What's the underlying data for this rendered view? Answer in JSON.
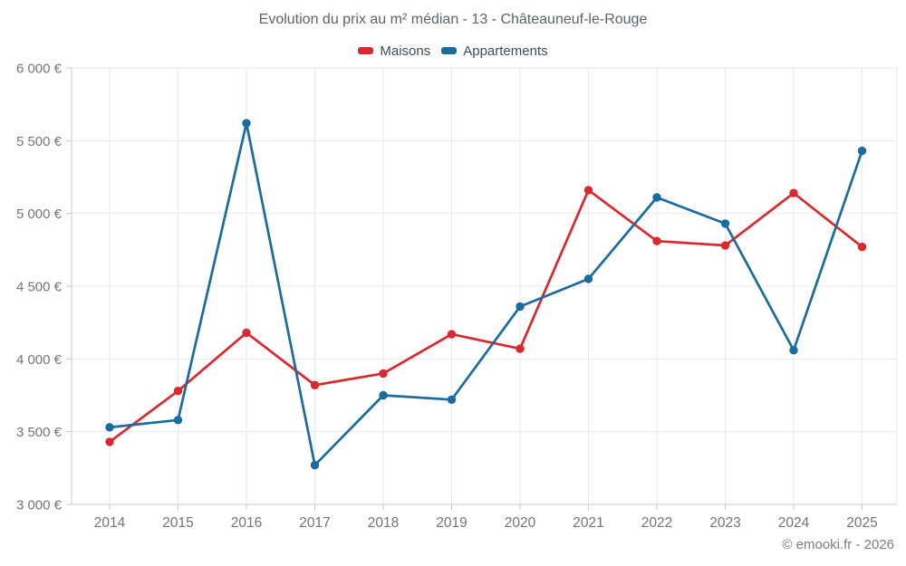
{
  "page": {
    "attribution": "© emooki.fr - 2026"
  },
  "chart_data": {
    "type": "line",
    "title": "Evolution du prix au m² médian - 13 - Châteauneuf-le-Rouge",
    "categories": [
      "2014",
      "2015",
      "2016",
      "2017",
      "2018",
      "2019",
      "2020",
      "2021",
      "2022",
      "2023",
      "2024",
      "2025"
    ],
    "series": [
      {
        "name": "Maisons",
        "slug": "maisons",
        "color": "#d9282e",
        "values": [
          3430,
          3780,
          4180,
          3820,
          3900,
          4170,
          4070,
          5160,
          4810,
          4780,
          5140,
          4770
        ]
      },
      {
        "name": "Appartements",
        "slug": "appartements",
        "color": "#1a6c9e",
        "values": [
          3530,
          3580,
          5620,
          3270,
          3750,
          3720,
          4360,
          4550,
          5110,
          4930,
          4060,
          5430
        ]
      }
    ],
    "xlabel": "",
    "ylabel": "",
    "ylabel_suffix": "€",
    "ylim": [
      3000,
      6000
    ],
    "ytick_step": 500,
    "ytick_labels": [
      "3 000 €",
      "3 500 €",
      "4 000 €",
      "4 500 €",
      "5 000 €",
      "5 500 €",
      "6 000 €"
    ],
    "grid": true,
    "legend_position": "top"
  }
}
